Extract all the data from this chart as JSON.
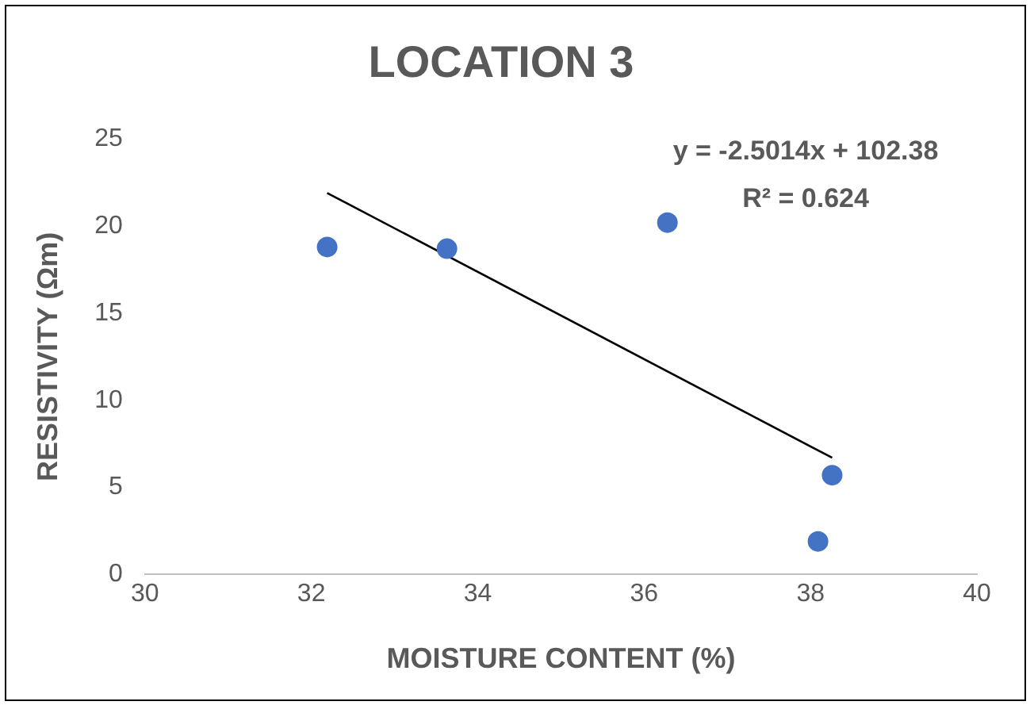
{
  "chart_data": {
    "type": "scatter",
    "title": "LOCATION 3",
    "xlabel": "MOISTURE CONTENT (%)",
    "ylabel": "RESISTIVITY (Ωm)",
    "annotations": [
      "y = -2.5014x + 102.38",
      "R² = 0.624"
    ],
    "xlim": [
      30,
      40
    ],
    "xticks": [
      30,
      32,
      34,
      36,
      38,
      40
    ],
    "ylim": [
      0,
      25
    ],
    "yticks": [
      0,
      5,
      10,
      15,
      20,
      25
    ],
    "grid": false,
    "legend": false,
    "marker": "circle",
    "series": [
      {
        "type": "scatter",
        "color": "#4472c4",
        "x": [
          32.19,
          33.63,
          36.28,
          38.26,
          38.09
        ],
        "values": [
          18.8,
          18.7,
          20.2,
          5.7,
          1.9
        ]
      },
      {
        "type": "line",
        "color": "#000000",
        "marker": "none",
        "x": [
          32.19,
          38.26
        ],
        "values": [
          21.9,
          6.7
        ]
      }
    ]
  }
}
